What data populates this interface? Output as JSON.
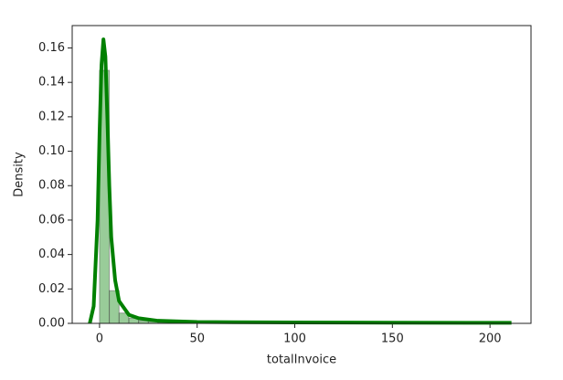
{
  "chart_data": {
    "type": "histogram",
    "xlabel": "totalInvoice",
    "ylabel": "Density",
    "bins": [
      0,
      5,
      10,
      15,
      20,
      25,
      30,
      50,
      100,
      150,
      211
    ],
    "values": [
      0.147,
      0.019,
      0.006,
      0.003,
      0.0015,
      0.001,
      0.0004,
      0.0001,
      5e-05,
      2e-05
    ],
    "color": "#008000",
    "kde": {
      "x": [
        -5,
        -3,
        -1,
        0,
        1,
        2,
        3,
        4,
        5,
        6,
        8,
        10,
        15,
        20,
        30,
        50,
        100,
        150,
        211
      ],
      "values": [
        0,
        0.01,
        0.06,
        0.11,
        0.15,
        0.165,
        0.155,
        0.12,
        0.08,
        0.05,
        0.025,
        0.013,
        0.005,
        0.003,
        0.0015,
        0.0008,
        0.0005,
        0.0004,
        0.0003
      ],
      "color": "#008000"
    },
    "xlim": [
      -14,
      221
    ],
    "ylim": [
      0,
      0.173
    ],
    "xticks": [
      0,
      50,
      100,
      150,
      200
    ],
    "yticks": [
      {
        "value": 0,
        "label": "0.00"
      },
      {
        "value": 0.02,
        "label": "0.02"
      },
      {
        "value": 0.04,
        "label": "0.04"
      },
      {
        "value": 0.06,
        "label": "0.06"
      },
      {
        "value": 0.08,
        "label": "0.08"
      },
      {
        "value": 0.1,
        "label": "0.10"
      },
      {
        "value": 0.12,
        "label": "0.12"
      },
      {
        "value": 0.14,
        "label": "0.14"
      },
      {
        "value": 0.16,
        "label": "0.16"
      }
    ]
  }
}
